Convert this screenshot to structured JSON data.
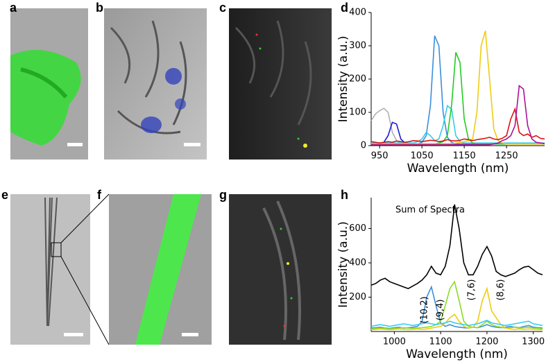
{
  "panels": {
    "labels": [
      "a",
      "b",
      "c",
      "d",
      "e",
      "f",
      "g",
      "h"
    ]
  },
  "chart_data": [
    {
      "type": "line",
      "ylabel": "Intensity (a.u.)",
      "xlabel": "Wavelength (nm)",
      "xlim": [
        930,
        1340
      ],
      "ylim": [
        0,
        400
      ],
      "xticks": [
        950,
        1050,
        1150,
        1250
      ],
      "yticks": [
        0,
        100,
        200,
        300,
        400
      ],
      "x": [
        930,
        940,
        950,
        960,
        970,
        980,
        990,
        1000,
        1010,
        1020,
        1030,
        1040,
        1050,
        1060,
        1070,
        1080,
        1090,
        1100,
        1110,
        1120,
        1130,
        1140,
        1150,
        1160,
        1170,
        1180,
        1190,
        1200,
        1210,
        1220,
        1230,
        1240,
        1250,
        1260,
        1270,
        1280,
        1290,
        1300,
        1310,
        1320,
        1330,
        1340
      ],
      "series": [
        {
          "color": "#b0b0b0",
          "values": [
            75,
            95,
            105,
            112,
            100,
            40,
            15,
            8,
            5,
            5,
            5,
            5,
            5,
            5,
            5,
            5,
            5,
            5,
            5,
            5,
            5,
            5,
            5,
            5,
            5,
            5,
            5,
            5,
            5,
            5,
            5,
            5,
            5,
            5,
            5,
            5,
            5,
            5,
            5,
            5,
            5,
            5
          ]
        },
        {
          "color": "#1a1acc",
          "values": [
            5,
            5,
            5,
            10,
            30,
            70,
            65,
            20,
            8,
            5,
            5,
            5,
            5,
            5,
            5,
            5,
            5,
            5,
            5,
            5,
            5,
            5,
            5,
            5,
            5,
            5,
            5,
            5,
            5,
            5,
            5,
            5,
            5,
            5,
            5,
            5,
            5,
            5,
            5,
            5,
            5,
            5
          ]
        },
        {
          "color": "#3a8fd8",
          "values": [
            5,
            5,
            5,
            5,
            5,
            5,
            5,
            5,
            5,
            5,
            5,
            5,
            10,
            30,
            120,
            330,
            300,
            100,
            25,
            10,
            5,
            5,
            5,
            5,
            5,
            5,
            5,
            5,
            5,
            5,
            5,
            5,
            5,
            5,
            5,
            5,
            5,
            5,
            5,
            5,
            5,
            5
          ]
        },
        {
          "color": "#33ccee",
          "values": [
            8,
            8,
            8,
            8,
            8,
            8,
            8,
            8,
            8,
            8,
            8,
            12,
            20,
            40,
            30,
            15,
            20,
            60,
            120,
            110,
            30,
            12,
            8,
            8,
            8,
            8,
            8,
            8,
            8,
            8,
            8,
            8,
            8,
            8,
            8,
            8,
            8,
            8,
            8,
            8,
            8,
            8
          ]
        },
        {
          "color": "#22cc22",
          "values": [
            5,
            5,
            5,
            5,
            5,
            5,
            5,
            5,
            5,
            5,
            5,
            5,
            5,
            5,
            5,
            5,
            8,
            12,
            30,
            120,
            280,
            250,
            80,
            20,
            8,
            5,
            5,
            5,
            5,
            5,
            5,
            5,
            5,
            5,
            5,
            5,
            5,
            5,
            5,
            5,
            5,
            5
          ]
        },
        {
          "color": "#eecc11",
          "values": [
            5,
            5,
            5,
            5,
            5,
            5,
            5,
            5,
            5,
            5,
            5,
            5,
            5,
            5,
            5,
            5,
            5,
            5,
            5,
            5,
            8,
            10,
            12,
            15,
            20,
            100,
            300,
            345,
            200,
            50,
            15,
            8,
            5,
            5,
            5,
            5,
            5,
            5,
            5,
            5,
            5,
            5
          ]
        },
        {
          "color": "#dd1111",
          "values": [
            12,
            10,
            8,
            10,
            12,
            10,
            14,
            12,
            10,
            12,
            15,
            14,
            12,
            14,
            16,
            15,
            12,
            14,
            18,
            15,
            14,
            16,
            20,
            18,
            15,
            18,
            20,
            22,
            25,
            20,
            18,
            22,
            30,
            80,
            110,
            40,
            30,
            35,
            25,
            30,
            22,
            20
          ]
        },
        {
          "color": "#aa1199",
          "values": [
            3,
            3,
            3,
            3,
            3,
            3,
            3,
            3,
            3,
            3,
            3,
            3,
            3,
            3,
            3,
            3,
            3,
            3,
            3,
            3,
            3,
            3,
            3,
            3,
            3,
            3,
            3,
            3,
            3,
            5,
            8,
            15,
            20,
            30,
            60,
            180,
            170,
            60,
            20,
            10,
            8,
            6
          ]
        }
      ]
    },
    {
      "type": "line",
      "ylabel": "Intensity (a.u.)",
      "xlabel": "Wavelength (nm)",
      "xlim": [
        950,
        1320
      ],
      "ylim": [
        0,
        780
      ],
      "xticks": [
        1000,
        1100,
        1200,
        1300
      ],
      "yticks": [
        200,
        400,
        600
      ],
      "x": [
        950,
        960,
        970,
        980,
        990,
        1000,
        1010,
        1020,
        1030,
        1040,
        1050,
        1060,
        1070,
        1080,
        1090,
        1100,
        1110,
        1120,
        1130,
        1140,
        1150,
        1160,
        1170,
        1180,
        1190,
        1200,
        1210,
        1220,
        1230,
        1240,
        1250,
        1260,
        1270,
        1280,
        1290,
        1300,
        1310,
        1320
      ],
      "series": [
        {
          "color": "#000000",
          "values": [
            270,
            280,
            300,
            310,
            290,
            280,
            270,
            260,
            250,
            265,
            280,
            300,
            330,
            380,
            340,
            330,
            380,
            500,
            740,
            600,
            400,
            330,
            330,
            380,
            450,
            495,
            440,
            350,
            330,
            320,
            330,
            340,
            360,
            375,
            380,
            360,
            340,
            330
          ]
        },
        {
          "color": "#3a8fd8",
          "values": [
            20,
            22,
            25,
            20,
            18,
            22,
            25,
            20,
            22,
            25,
            30,
            60,
            200,
            260,
            150,
            50,
            30,
            40,
            30,
            25,
            22,
            20,
            25,
            22,
            30,
            40,
            30,
            25,
            22,
            25,
            30,
            25,
            22,
            30,
            35,
            25,
            22,
            20
          ]
        },
        {
          "color": "#88dd22",
          "values": [
            15,
            18,
            20,
            18,
            15,
            18,
            20,
            22,
            20,
            18,
            20,
            22,
            25,
            30,
            40,
            60,
            150,
            250,
            290,
            180,
            60,
            30,
            25,
            22,
            40,
            60,
            40,
            30,
            25,
            20,
            22,
            25,
            20,
            22,
            25,
            20,
            18,
            15
          ]
        },
        {
          "color": "#eecc11",
          "values": [
            10,
            12,
            15,
            12,
            10,
            12,
            15,
            12,
            10,
            12,
            15,
            12,
            15,
            20,
            25,
            30,
            50,
            80,
            100,
            60,
            30,
            20,
            25,
            60,
            180,
            250,
            120,
            80,
            40,
            20,
            15,
            12,
            15,
            12,
            15,
            12,
            10,
            10
          ]
        },
        {
          "color": "#33ccee",
          "values": [
            30,
            35,
            40,
            35,
            30,
            35,
            40,
            45,
            40,
            35,
            40,
            45,
            50,
            45,
            40,
            45,
            50,
            60,
            50,
            45,
            40,
            35,
            40,
            45,
            55,
            65,
            50,
            45,
            40,
            35,
            40,
            45,
            50,
            55,
            60,
            45,
            40,
            35
          ]
        }
      ],
      "annotations": [
        "Sum of Spectra",
        "(10,2)",
        "(9,4)",
        "(7,6)",
        "(8,6)"
      ]
    }
  ]
}
